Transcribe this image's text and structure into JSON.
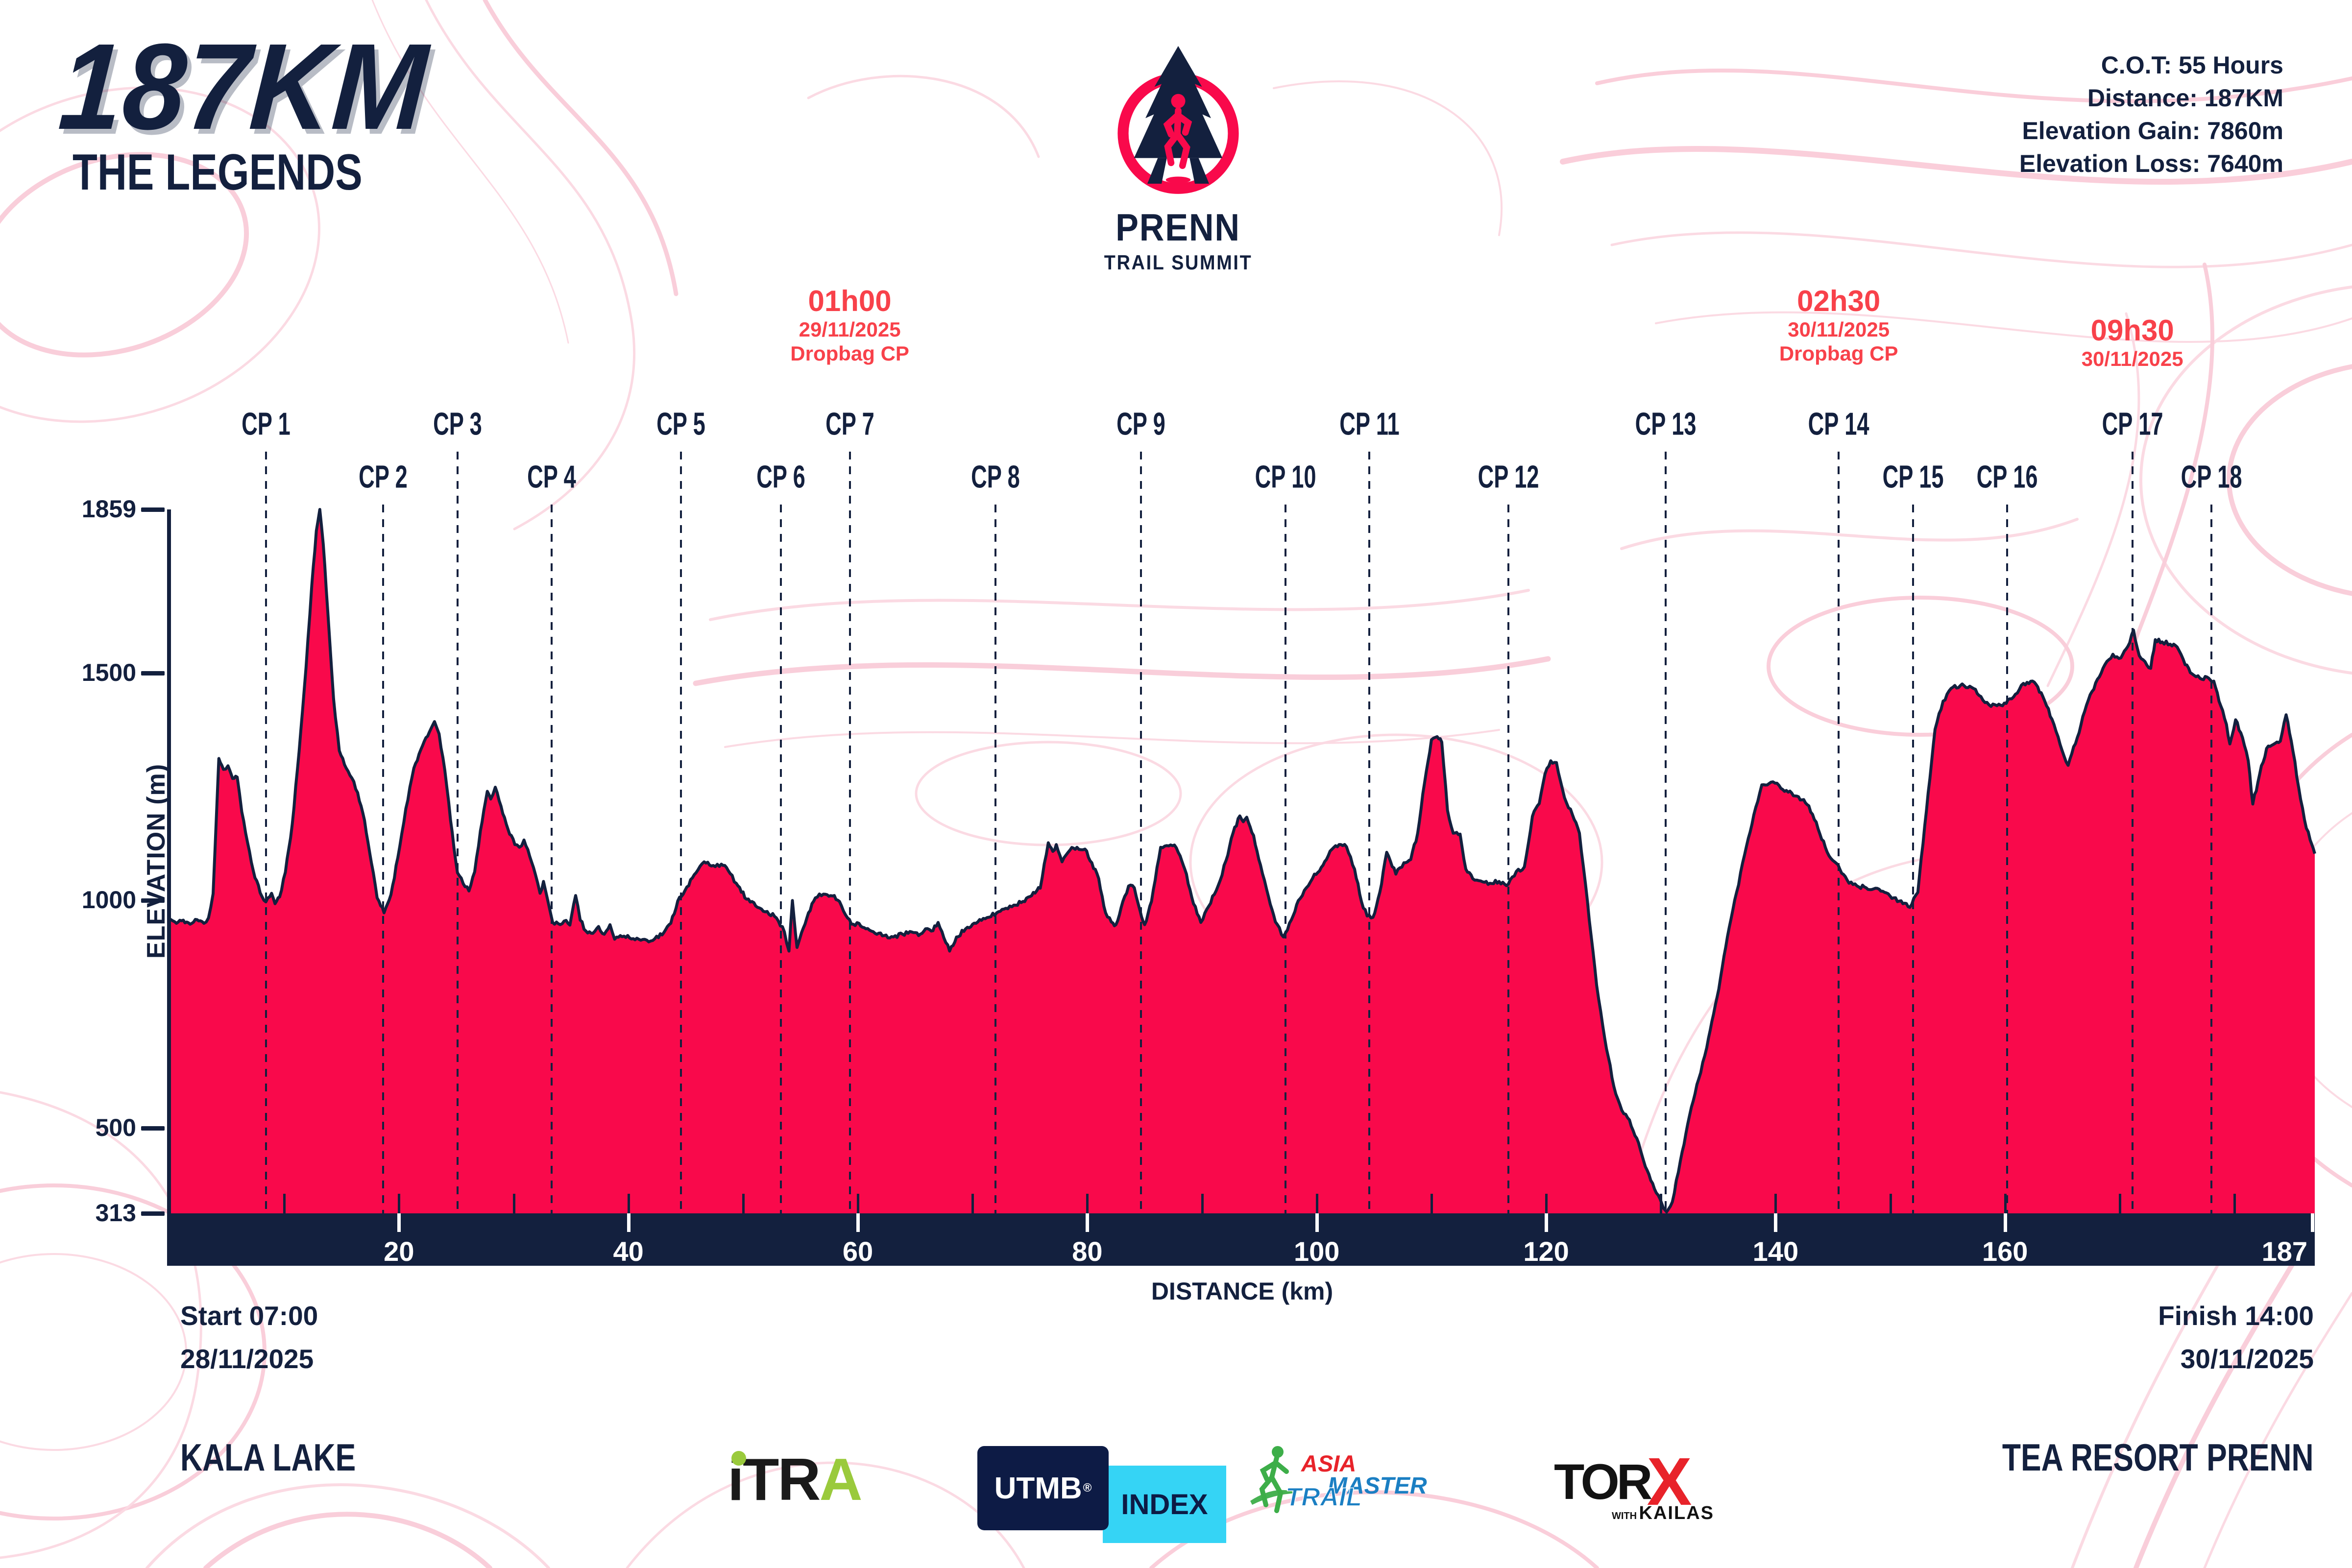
{
  "colors": {
    "navy": "#13203E",
    "crimson": "#F9094B",
    "annotation_red": "#F8414A",
    "pink_light": "#FBD6E0",
    "pink_strong": "#F9C9D6",
    "utmb_navy": "#0D1B45",
    "utmb_cyan": "#35D4F5",
    "itra_green": "#9ACA3C",
    "atm_green": "#3DAE49",
    "atm_blue": "#1B7FC3",
    "atm_red": "#E8232A",
    "torx_red": "#E8232A"
  },
  "header": {
    "distance_title": "187KM",
    "race_name": "THE LEGENDS",
    "stats": [
      "C.O.T: 55 Hours",
      "Distance: 187KM",
      "Elevation Gain: 7860m",
      "Elevation Loss: 7640m"
    ]
  },
  "logo": {
    "title": "PRENN",
    "subtitle": "TRAIL SUMMIT"
  },
  "chart_data": {
    "type": "area",
    "title": "187KM THE LEGENDS elevation profile",
    "xlabel": "DISTANCE (km)",
    "ylabel": "ELEVATION (m)",
    "xlim": [
      0,
      187
    ],
    "ylim": [
      313,
      1859
    ],
    "x_ticks": [
      20,
      40,
      60,
      80,
      100,
      120,
      140,
      160,
      187
    ],
    "x_minor_tick_step": 10,
    "y_ticks": [
      313,
      500,
      1000,
      1500,
      1859
    ],
    "grid": false,
    "checkpoints": [
      {
        "label": "CP 1",
        "km": 8.4,
        "row": "upper"
      },
      {
        "label": "CP 2",
        "km": 18.6,
        "row": "lower"
      },
      {
        "label": "CP 3",
        "km": 25.1,
        "row": "upper"
      },
      {
        "label": "CP 4",
        "km": 33.3,
        "row": "lower"
      },
      {
        "label": "CP 5",
        "km": 44.6,
        "row": "upper"
      },
      {
        "label": "CP 6",
        "km": 53.3,
        "row": "lower"
      },
      {
        "label": "CP 7",
        "km": 59.3,
        "row": "upper"
      },
      {
        "label": "CP 8",
        "km": 72.0,
        "row": "lower"
      },
      {
        "label": "CP 9",
        "km": 84.7,
        "row": "upper"
      },
      {
        "label": "CP 10",
        "km": 97.3,
        "row": "lower"
      },
      {
        "label": "CP 11",
        "km": 104.6,
        "row": "upper"
      },
      {
        "label": "CP 12",
        "km": 116.7,
        "row": "lower"
      },
      {
        "label": "CP 13",
        "km": 130.4,
        "row": "upper"
      },
      {
        "label": "CP 14",
        "km": 145.5,
        "row": "upper"
      },
      {
        "label": "CP 15",
        "km": 152.0,
        "row": "lower"
      },
      {
        "label": "CP 16",
        "km": 160.2,
        "row": "lower"
      },
      {
        "label": "CP 17",
        "km": 171.1,
        "row": "upper"
      },
      {
        "label": "CP 18",
        "km": 178.0,
        "row": "lower"
      }
    ],
    "annotations": [
      {
        "km": 59.3,
        "lines": [
          "01h00",
          "29/11/2025",
          "Dropbag CP"
        ]
      },
      {
        "km": 145.5,
        "lines": [
          "02h30",
          "30/11/2025",
          "Dropbag CP"
        ]
      },
      {
        "km": 171.1,
        "lines": [
          "09h30",
          "30/11/2025"
        ]
      }
    ],
    "profile_km_m": [
      [
        0,
        960
      ],
      [
        0.6,
        950
      ],
      [
        1.2,
        957
      ],
      [
        1.8,
        948
      ],
      [
        2.4,
        958
      ],
      [
        3,
        950
      ],
      [
        3.4,
        962
      ],
      [
        3.8,
        1015
      ],
      [
        4.3,
        1312
      ],
      [
        4.7,
        1288
      ],
      [
        5.1,
        1296
      ],
      [
        5.5,
        1268
      ],
      [
        5.9,
        1271
      ],
      [
        6.3,
        1195
      ],
      [
        6.8,
        1128
      ],
      [
        7.3,
        1066
      ],
      [
        7.9,
        1017
      ],
      [
        8.4,
        997
      ],
      [
        8.9,
        1016
      ],
      [
        9.2,
        993
      ],
      [
        9.6,
        1008
      ],
      [
        10.1,
        1062
      ],
      [
        10.7,
        1168
      ],
      [
        11.3,
        1328
      ],
      [
        11.9,
        1512
      ],
      [
        12.4,
        1692
      ],
      [
        12.8,
        1812
      ],
      [
        13.1,
        1859
      ],
      [
        13.4,
        1783
      ],
      [
        13.8,
        1633
      ],
      [
        14.3,
        1443
      ],
      [
        14.8,
        1329
      ],
      [
        15.4,
        1291
      ],
      [
        15.9,
        1269
      ],
      [
        16.4,
        1237
      ],
      [
        17,
        1176
      ],
      [
        17.6,
        1083
      ],
      [
        18.1,
        1006
      ],
      [
        18.7,
        973
      ],
      [
        19.3,
        1013
      ],
      [
        19.9,
        1094
      ],
      [
        20.6,
        1202
      ],
      [
        21.3,
        1291
      ],
      [
        21.9,
        1331
      ],
      [
        22.5,
        1361
      ],
      [
        23.1,
        1393
      ],
      [
        23.5,
        1366
      ],
      [
        24,
        1286
      ],
      [
        24.5,
        1176
      ],
      [
        25.1,
        1061
      ],
      [
        25.6,
        1037
      ],
      [
        26.1,
        1021
      ],
      [
        26.6,
        1063
      ],
      [
        27.1,
        1153
      ],
      [
        27.7,
        1240
      ],
      [
        28,
        1223
      ],
      [
        28.4,
        1249
      ],
      [
        28.9,
        1207
      ],
      [
        29.5,
        1157
      ],
      [
        30.1,
        1123
      ],
      [
        30.5,
        1117
      ],
      [
        30.9,
        1133
      ],
      [
        31.4,
        1097
      ],
      [
        31.9,
        1057
      ],
      [
        32.3,
        1016
      ],
      [
        32.6,
        1042
      ],
      [
        33,
        997
      ],
      [
        33.4,
        952
      ],
      [
        33.9,
        949
      ],
      [
        34.4,
        955
      ],
      [
        34.9,
        946
      ],
      [
        35.4,
        1011
      ],
      [
        35.8,
        957
      ],
      [
        36.3,
        933
      ],
      [
        36.9,
        928
      ],
      [
        37.4,
        943
      ],
      [
        37.9,
        926
      ],
      [
        38.4,
        947
      ],
      [
        38.8,
        915
      ],
      [
        39.3,
        923
      ],
      [
        40.1,
        918
      ],
      [
        40.9,
        915
      ],
      [
        41.6,
        913
      ],
      [
        42.3,
        916
      ],
      [
        43.1,
        930
      ],
      [
        43.7,
        950
      ],
      [
        44.3,
        999
      ],
      [
        45.1,
        1030
      ],
      [
        45.9,
        1061
      ],
      [
        46.6,
        1085
      ],
      [
        47.4,
        1077
      ],
      [
        48.1,
        1080
      ],
      [
        48.7,
        1066
      ],
      [
        49.4,
        1038
      ],
      [
        50.3,
        1003
      ],
      [
        51.1,
        988
      ],
      [
        52.1,
        976
      ],
      [
        52.9,
        962
      ],
      [
        53.6,
        931
      ],
      [
        54,
        889
      ],
      [
        54.3,
        1000
      ],
      [
        54.7,
        897
      ],
      [
        55.1,
        930
      ],
      [
        55.7,
        973
      ],
      [
        56.3,
        1006
      ],
      [
        57,
        1014
      ],
      [
        57.8,
        1010
      ],
      [
        58.4,
        998
      ],
      [
        59.1,
        962
      ],
      [
        59.6,
        948
      ],
      [
        60.1,
        950
      ],
      [
        60.7,
        938
      ],
      [
        61.5,
        928
      ],
      [
        62.3,
        923
      ],
      [
        63.1,
        920
      ],
      [
        63.9,
        926
      ],
      [
        64.7,
        931
      ],
      [
        65.3,
        923
      ],
      [
        65.9,
        938
      ],
      [
        66.4,
        933
      ],
      [
        67,
        952
      ],
      [
        67.5,
        918
      ],
      [
        68,
        889
      ],
      [
        68.6,
        920
      ],
      [
        69.4,
        938
      ],
      [
        70.3,
        950
      ],
      [
        71.1,
        960
      ],
      [
        72.1,
        973
      ],
      [
        72.9,
        983
      ],
      [
        73.6,
        990
      ],
      [
        74.4,
        998
      ],
      [
        75.3,
        1018
      ],
      [
        75.9,
        1027
      ],
      [
        76.6,
        1127
      ],
      [
        77,
        1108
      ],
      [
        77.3,
        1123
      ],
      [
        77.8,
        1085
      ],
      [
        78.5,
        1111
      ],
      [
        79.1,
        1117
      ],
      [
        79.8,
        1113
      ],
      [
        80.4,
        1083
      ],
      [
        81,
        1048
      ],
      [
        81.6,
        973
      ],
      [
        82.1,
        953
      ],
      [
        82.5,
        947
      ],
      [
        83.1,
        998
      ],
      [
        83.6,
        1032
      ],
      [
        84.1,
        1028
      ],
      [
        84.6,
        978
      ],
      [
        85,
        947
      ],
      [
        85.6,
        998
      ],
      [
        86.4,
        1117
      ],
      [
        87.1,
        1120
      ],
      [
        87.6,
        1122
      ],
      [
        88.1,
        1098
      ],
      [
        88.5,
        1069
      ],
      [
        89.1,
        1008
      ],
      [
        89.9,
        952
      ],
      [
        90.6,
        988
      ],
      [
        91.4,
        1032
      ],
      [
        92.1,
        1088
      ],
      [
        92.7,
        1148
      ],
      [
        93.3,
        1186
      ],
      [
        93.6,
        1173
      ],
      [
        93.9,
        1183
      ],
      [
        94.5,
        1143
      ],
      [
        95.1,
        1078
      ],
      [
        95.8,
        1008
      ],
      [
        96.4,
        953
      ],
      [
        97.1,
        920
      ],
      [
        97.8,
        958
      ],
      [
        98.4,
        1000
      ],
      [
        99.1,
        1028
      ],
      [
        99.8,
        1058
      ],
      [
        100.4,
        1073
      ],
      [
        101,
        1098
      ],
      [
        101.5,
        1117
      ],
      [
        102.1,
        1123
      ],
      [
        102.6,
        1118
      ],
      [
        103.3,
        1069
      ],
      [
        103.9,
        998
      ],
      [
        104.4,
        966
      ],
      [
        104.9,
        963
      ],
      [
        105.5,
        1018
      ],
      [
        106.1,
        1106
      ],
      [
        106.9,
        1058
      ],
      [
        107.6,
        1083
      ],
      [
        108.2,
        1090
      ],
      [
        108.8,
        1148
      ],
      [
        109.4,
        1258
      ],
      [
        110,
        1353
      ],
      [
        110.5,
        1360
      ],
      [
        110.9,
        1348
      ],
      [
        111.4,
        1198
      ],
      [
        111.9,
        1148
      ],
      [
        112.5,
        1146
      ],
      [
        113,
        1069
      ],
      [
        113.6,
        1048
      ],
      [
        114.3,
        1043
      ],
      [
        115.1,
        1038
      ],
      [
        115.9,
        1042
      ],
      [
        116.7,
        1036
      ],
      [
        117.4,
        1064
      ],
      [
        118.1,
        1074
      ],
      [
        118.8,
        1185
      ],
      [
        119.4,
        1213
      ],
      [
        119.9,
        1278
      ],
      [
        120.4,
        1307
      ],
      [
        120.9,
        1303
      ],
      [
        121.6,
        1226
      ],
      [
        122.3,
        1188
      ],
      [
        122.9,
        1148
      ],
      [
        123.6,
        998
      ],
      [
        124.4,
        814
      ],
      [
        125.1,
        698
      ],
      [
        125.9,
        592
      ],
      [
        126.6,
        539
      ],
      [
        127.1,
        523
      ],
      [
        127.9,
        478
      ],
      [
        128.8,
        408
      ],
      [
        129.6,
        358
      ],
      [
        130.1,
        333
      ],
      [
        130.5,
        316
      ],
      [
        131,
        338
      ],
      [
        131.7,
        428
      ],
      [
        132.5,
        528
      ],
      [
        133.3,
        608
      ],
      [
        134,
        677
      ],
      [
        134.9,
        788
      ],
      [
        135.8,
        920
      ],
      [
        136.6,
        1018
      ],
      [
        137.3,
        1101
      ],
      [
        138.1,
        1188
      ],
      [
        138.8,
        1254
      ],
      [
        139.6,
        1260
      ],
      [
        140.3,
        1253
      ],
      [
        141.1,
        1238
      ],
      [
        142,
        1228
      ],
      [
        142.9,
        1208
      ],
      [
        143.7,
        1158
      ],
      [
        144.5,
        1106
      ],
      [
        145.6,
        1069
      ],
      [
        146.4,
        1038
      ],
      [
        147.1,
        1032
      ],
      [
        147.9,
        1028
      ],
      [
        148.7,
        1027
      ],
      [
        149.5,
        1018
      ],
      [
        150.3,
        1006
      ],
      [
        151.1,
        993
      ],
      [
        151.7,
        985
      ],
      [
        152.4,
        1018
      ],
      [
        153,
        1164
      ],
      [
        153.9,
        1376
      ],
      [
        154.6,
        1438
      ],
      [
        155.3,
        1466
      ],
      [
        156.1,
        1472
      ],
      [
        157.1,
        1468
      ],
      [
        157.9,
        1448
      ],
      [
        158.6,
        1430
      ],
      [
        159.3,
        1428
      ],
      [
        160.1,
        1433
      ],
      [
        160.9,
        1453
      ],
      [
        161.6,
        1477
      ],
      [
        162.4,
        1482
      ],
      [
        163.3,
        1448
      ],
      [
        164.1,
        1398
      ],
      [
        164.8,
        1343
      ],
      [
        165.5,
        1297
      ],
      [
        166.3,
        1358
      ],
      [
        167.1,
        1429
      ],
      [
        167.9,
        1478
      ],
      [
        168.7,
        1518
      ],
      [
        169.4,
        1541
      ],
      [
        170.1,
        1533
      ],
      [
        170.7,
        1558
      ],
      [
        171.2,
        1594
      ],
      [
        171.7,
        1538
      ],
      [
        172.2,
        1525
      ],
      [
        172.7,
        1510
      ],
      [
        173.1,
        1573
      ],
      [
        173.7,
        1568
      ],
      [
        174.4,
        1563
      ],
      [
        175,
        1557
      ],
      [
        175.7,
        1518
      ],
      [
        176.3,
        1498
      ],
      [
        177,
        1488
      ],
      [
        177.6,
        1491
      ],
      [
        178.2,
        1482
      ],
      [
        178.8,
        1428
      ],
      [
        179.3,
        1387
      ],
      [
        179.6,
        1344
      ],
      [
        180.1,
        1397
      ],
      [
        180.7,
        1358
      ],
      [
        181.2,
        1307
      ],
      [
        181.6,
        1212
      ],
      [
        182.2,
        1278
      ],
      [
        182.8,
        1334
      ],
      [
        183.4,
        1343
      ],
      [
        184,
        1350
      ],
      [
        184.5,
        1408
      ],
      [
        185.1,
        1328
      ],
      [
        185.6,
        1248
      ],
      [
        186.1,
        1178
      ],
      [
        186.6,
        1133
      ],
      [
        187,
        1103
      ]
    ]
  },
  "footer": {
    "start_time": "Start 07:00",
    "start_date": "28/11/2025",
    "start_location": "KALA LAKE",
    "finish_time": "Finish 14:00",
    "finish_date": "30/11/2025",
    "finish_location": "TEA RESORT PRENN"
  },
  "sponsors": {
    "itra_black": "iTR",
    "itra_green": "A",
    "utmb": "UTMB",
    "utmb_reg": "®",
    "utmb_index": "INDEX",
    "atm_asia": "ASIA",
    "atm_trail": "TRAIL",
    "atm_master": "MASTER",
    "torx_tor": "TOR",
    "torx_x": "X",
    "torx_with": "WITH",
    "torx_kailas": "KAILAS"
  }
}
